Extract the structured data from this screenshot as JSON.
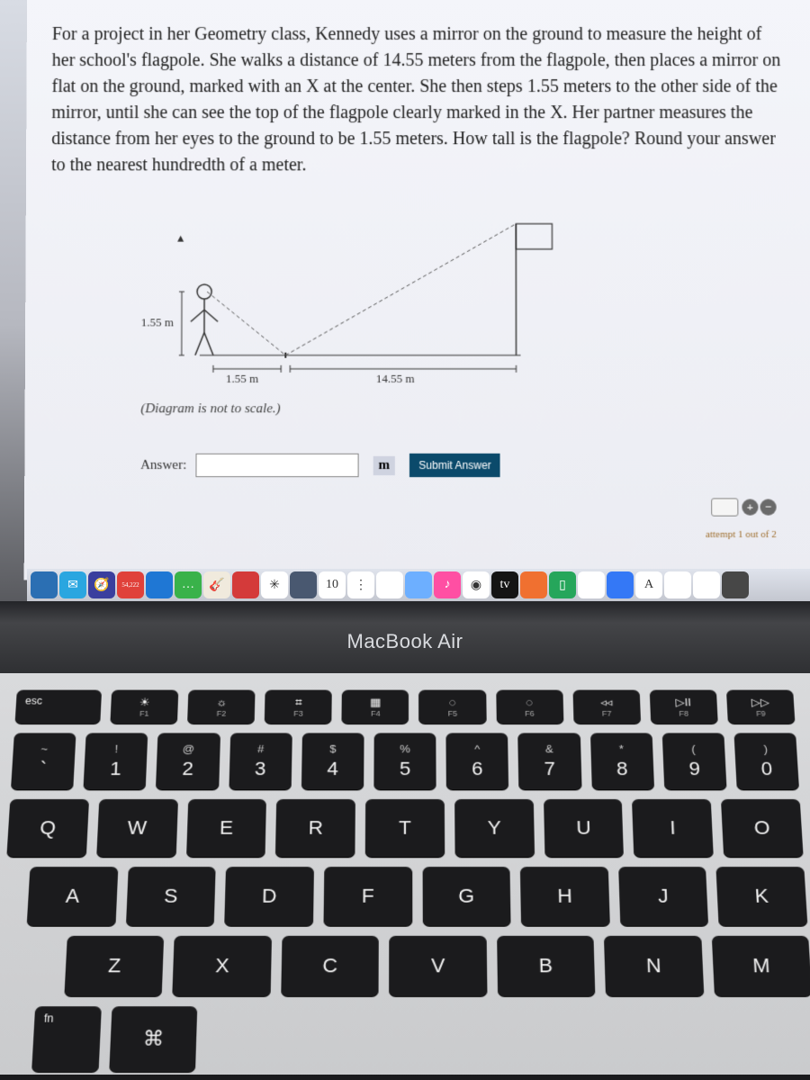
{
  "problem": {
    "text": "For a project in her Geometry class, Kennedy uses a mirror on the ground to measure the height of her school's flagpole. She walks a distance of 14.55 meters from the flagpole, then places a mirror on flat on the ground, marked with an X at the center. She then steps 1.55 meters to the other side of the mirror, until she can see the top of the flagpole clearly marked in the X. Her partner measures the distance from her eyes to the ground to be 1.55 meters. How tall is the flagpole? Round your answer to the nearest hundredth of a meter."
  },
  "diagram": {
    "person_height_label": "1.55 m",
    "person_distance_label": "1.55 m",
    "flagpole_distance_label": "14.55 m",
    "caption": "(Diagram is not to scale.)",
    "colors": {
      "line": "#333333",
      "dashed": "#555555",
      "background": "transparent"
    }
  },
  "answer_area": {
    "label": "Answer:",
    "input_value": "",
    "unit": "m",
    "submit_label": "Submit Answer",
    "attempt_note": "attempt 1 out of 2"
  },
  "dock": {
    "icons": [
      {
        "bg": "#2b6fb3",
        "glyph": ""
      },
      {
        "bg": "#2aa6e0",
        "glyph": "✉"
      },
      {
        "bg": "#3a3f9e",
        "glyph": "🧭"
      },
      {
        "bg": "#e0413a",
        "glyph": "54,222"
      },
      {
        "bg": "#1f77d4",
        "glyph": ""
      },
      {
        "bg": "#39b24a",
        "glyph": "…"
      },
      {
        "bg": "#f0eadd",
        "glyph": "🎸"
      },
      {
        "bg": "#d43a3a",
        "glyph": ""
      },
      {
        "bg": "#ffffff",
        "glyph": "✳"
      },
      {
        "bg": "#495870",
        "glyph": ""
      },
      {
        "bg": "#ffffff",
        "glyph": "10"
      },
      {
        "bg": "#ffffff",
        "glyph": "⋮"
      },
      {
        "bg": "#ffffff",
        "glyph": ""
      },
      {
        "bg": "#6dafff",
        "glyph": ""
      },
      {
        "bg": "#ff4fa3",
        "glyph": "♪"
      },
      {
        "bg": "#ffffff",
        "glyph": "◉"
      },
      {
        "bg": "#141414",
        "glyph": "tv"
      },
      {
        "bg": "#f07030",
        "glyph": ""
      },
      {
        "bg": "#26a65b",
        "glyph": "▯"
      },
      {
        "bg": "#ffffff",
        "glyph": ""
      },
      {
        "bg": "#3478f6",
        "glyph": ""
      },
      {
        "bg": "#ffffff",
        "glyph": "A"
      },
      {
        "bg": "#ffffff",
        "glyph": ""
      },
      {
        "bg": "#ffffff",
        "glyph": ""
      },
      {
        "bg": "#474747",
        "glyph": ""
      }
    ]
  },
  "laptop": {
    "brand": "MacBook Air"
  },
  "keyboard": {
    "fn_row": [
      {
        "label": "esc",
        "glyph": "",
        "sub": ""
      },
      {
        "label": "",
        "glyph": "☀",
        "sub": "F1"
      },
      {
        "label": "",
        "glyph": "☼",
        "sub": "F2"
      },
      {
        "label": "",
        "glyph": "⌗",
        "sub": "F3"
      },
      {
        "label": "",
        "glyph": "▦",
        "sub": "F4"
      },
      {
        "label": "",
        "glyph": "◌",
        "sub": "F5"
      },
      {
        "label": "",
        "glyph": "◌",
        "sub": "F6"
      },
      {
        "label": "",
        "glyph": "◃◃",
        "sub": "F7"
      },
      {
        "label": "",
        "glyph": "▷II",
        "sub": "F8"
      },
      {
        "label": "",
        "glyph": "▷▷",
        "sub": "F9"
      }
    ],
    "num_row": [
      {
        "top": "~",
        "bot": "`"
      },
      {
        "top": "!",
        "bot": "1"
      },
      {
        "top": "@",
        "bot": "2"
      },
      {
        "top": "#",
        "bot": "3"
      },
      {
        "top": "$",
        "bot": "4"
      },
      {
        "top": "%",
        "bot": "5"
      },
      {
        "top": "^",
        "bot": "6"
      },
      {
        "top": "&",
        "bot": "7"
      },
      {
        "top": "*",
        "bot": "8"
      },
      {
        "top": "(",
        "bot": "9"
      },
      {
        "top": ")",
        "bot": "0"
      }
    ],
    "row_q": [
      "Q",
      "W",
      "E",
      "R",
      "T",
      "Y",
      "U",
      "I",
      "O"
    ],
    "row_a": [
      "A",
      "S",
      "D",
      "F",
      "G",
      "H",
      "J",
      "K"
    ],
    "row_z": [
      "Z",
      "X",
      "C",
      "V",
      "B",
      "N",
      "M"
    ],
    "bottom": {
      "fn": "fn",
      "cmd": "⌘"
    }
  }
}
